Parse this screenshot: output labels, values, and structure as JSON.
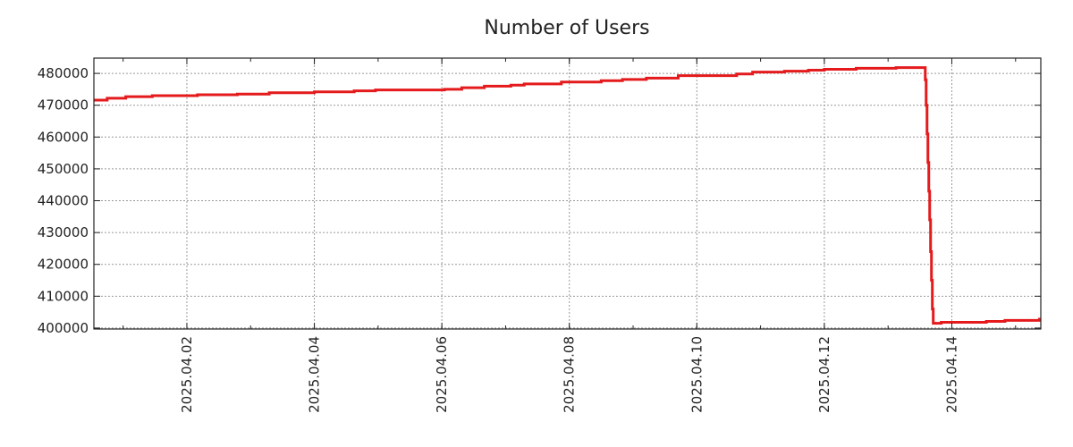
{
  "chart_data": {
    "type": "line",
    "title": "Number of Users",
    "xlabel": "",
    "ylabel": "",
    "series": [
      {
        "name": "Number of Users",
        "color": "#e41a1c",
        "step": "post",
        "points": [
          [
            "2025-03-31 13:00",
            471600
          ],
          [
            "2025-03-31 18:00",
            472200
          ],
          [
            "2025-04-01 01:00",
            472700
          ],
          [
            "2025-04-01 11:00",
            473000
          ],
          [
            "2025-04-02 04:00",
            473300
          ],
          [
            "2025-04-02 19:00",
            473500
          ],
          [
            "2025-04-03 07:00",
            473900
          ],
          [
            "2025-04-04 00:00",
            474200
          ],
          [
            "2025-04-04 15:00",
            474500
          ],
          [
            "2025-04-04 23:00",
            474800
          ],
          [
            "2025-04-06 01:00",
            475000
          ],
          [
            "2025-04-06 07:30",
            475500
          ],
          [
            "2025-04-06 16:00",
            476000
          ],
          [
            "2025-04-07 02:00",
            476300
          ],
          [
            "2025-04-07 07:00",
            476700
          ],
          [
            "2025-04-07 21:00",
            477300
          ],
          [
            "2025-04-08 12:00",
            477700
          ],
          [
            "2025-04-08 20:00",
            478100
          ],
          [
            "2025-04-09 05:00",
            478500
          ],
          [
            "2025-04-09 17:00",
            479300
          ],
          [
            "2025-04-10 15:00",
            479800
          ],
          [
            "2025-04-10 21:00",
            480400
          ],
          [
            "2025-04-11 09:00",
            480700
          ],
          [
            "2025-04-11 18:00",
            481000
          ],
          [
            "2025-04-12 00:00",
            481300
          ],
          [
            "2025-04-12 12:00",
            481600
          ],
          [
            "2025-04-13 03:00",
            481800
          ],
          [
            "2025-04-13 14:00",
            478000
          ],
          [
            "2025-04-13 14:20",
            470000
          ],
          [
            "2025-04-13 14:40",
            461000
          ],
          [
            "2025-04-13 15:00",
            452000
          ],
          [
            "2025-04-13 15:20",
            443000
          ],
          [
            "2025-04-13 15:40",
            434000
          ],
          [
            "2025-04-13 16:00",
            424000
          ],
          [
            "2025-04-13 16:20",
            415000
          ],
          [
            "2025-04-13 16:40",
            406000
          ],
          [
            "2025-04-13 17:00",
            401500
          ],
          [
            "2025-04-13 20:00",
            401800
          ],
          [
            "2025-04-14 13:00",
            402100
          ],
          [
            "2025-04-14 20:00",
            402400
          ],
          [
            "2025-04-15 09:00",
            402800
          ]
        ]
      }
    ],
    "xlim": [
      "2025-03-31 13:00",
      "2025-04-15 09:30"
    ],
    "ylim": [
      399700,
      484800
    ],
    "xticks": [
      "2025.04.02",
      "2025.04.04",
      "2025.04.06",
      "2025.04.08",
      "2025.04.10",
      "2025.04.12",
      "2025.04.14"
    ],
    "yticks": [
      "400000",
      "410000",
      "420000",
      "430000",
      "440000",
      "450000",
      "460000",
      "470000",
      "480000"
    ],
    "grid": true,
    "legend": "none"
  }
}
